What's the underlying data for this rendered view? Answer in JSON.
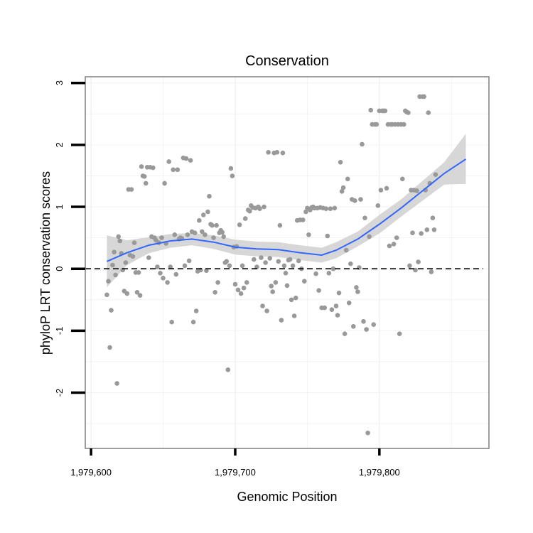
{
  "chart_data": {
    "type": "scatter",
    "title": "Conservation",
    "xlabel": "Genomic Position",
    "ylabel": "phyloP LRT conservation scores",
    "xlim": [
      1979596,
      1979876
    ],
    "ylim": [
      -2.9,
      3.1
    ],
    "x_ticks": [
      1979600,
      1979700,
      1979800
    ],
    "x_tick_labels": [
      "1,979,600",
      "1,979,700",
      "1,979,800"
    ],
    "y_ticks": [
      -2,
      -1,
      0,
      1,
      2,
      3
    ],
    "y_tick_labels": [
      "-2",
      "-1",
      "0",
      "1",
      "2",
      "3"
    ],
    "grid": true,
    "reference_line": {
      "y": 0,
      "style": "dashed",
      "color": "#000000"
    },
    "colors": {
      "points": "#999999",
      "smooth_line": "#3366ff",
      "confidence_band": "#d3d3d3",
      "panel_border": "#7f7f7f",
      "grid": "#f2f2f2"
    },
    "points": [
      [
        1979611,
        -0.42
      ],
      [
        1979612,
        -0.2
      ],
      [
        1979613,
        -1.27
      ],
      [
        1979614,
        -0.67
      ],
      [
        1979615,
        0.06
      ],
      [
        1979616,
        0.27
      ],
      [
        1979617,
        -0.1
      ],
      [
        1979618,
        -1.85
      ],
      [
        1979619,
        0.52
      ],
      [
        1979620,
        0.45
      ],
      [
        1979621,
        0.25
      ],
      [
        1979622,
        -0.02
      ],
      [
        1979623,
        -0.36
      ],
      [
        1979624,
        0.1
      ],
      [
        1979625,
        -0.4
      ],
      [
        1979626,
        1.28
      ],
      [
        1979627,
        0.22
      ],
      [
        1979628,
        1.28
      ],
      [
        1979629,
        0.2
      ],
      [
        1979630,
        0.42
      ],
      [
        1979631,
        -0.06
      ],
      [
        1979632,
        -0.38
      ],
      [
        1979633,
        -0.06
      ],
      [
        1979634,
        -0.43
      ],
      [
        1979635,
        1.65
      ],
      [
        1979636,
        1.5
      ],
      [
        1979637,
        1.49
      ],
      [
        1979638,
        1.38
      ],
      [
        1979639,
        1.64
      ],
      [
        1979640,
        0.18
      ],
      [
        1979641,
        1.64
      ],
      [
        1979642,
        0.52
      ],
      [
        1979643,
        1.63
      ],
      [
        1979644,
        0.5
      ],
      [
        1979645,
        0.46
      ],
      [
        1979646,
        0.03
      ],
      [
        1979647,
        0.42
      ],
      [
        1979648,
        -0.07
      ],
      [
        1979649,
        0.5
      ],
      [
        1979650,
        -0.15
      ],
      [
        1979651,
        1.38
      ],
      [
        1979652,
        0.41
      ],
      [
        1979653,
        -0.22
      ],
      [
        1979654,
        1.73
      ],
      [
        1979655,
        0.03
      ],
      [
        1979656,
        -0.86
      ],
      [
        1979657,
        1.6
      ],
      [
        1979658,
        0.55
      ],
      [
        1979659,
        -0.09
      ],
      [
        1979660,
        1.6
      ],
      [
        1979661,
        0.48
      ],
      [
        1979662,
        0.5
      ],
      [
        1979663,
        0.49
      ],
      [
        1979664,
        1.79
      ],
      [
        1979665,
        0.05
      ],
      [
        1979666,
        1.78
      ],
      [
        1979667,
        0.55
      ],
      [
        1979668,
        0.13
      ],
      [
        1979669,
        1.75
      ],
      [
        1979670,
        0.6
      ],
      [
        1979671,
        -0.86
      ],
      [
        1979672,
        0.58
      ],
      [
        1979673,
        -0.68
      ],
      [
        1979674,
        -0.04
      ],
      [
        1979675,
        0.78
      ],
      [
        1979676,
        -0.02
      ],
      [
        1979677,
        0.6
      ],
      [
        1979678,
        0.87
      ],
      [
        1979679,
        0.55
      ],
      [
        1979680,
        -0.03
      ],
      [
        1979681,
        0.92
      ],
      [
        1979682,
        1.17
      ],
      [
        1979683,
        0.72
      ],
      [
        1979684,
        0.7
      ],
      [
        1979685,
        0.5
      ],
      [
        1979686,
        -0.38
      ],
      [
        1979687,
        0.7
      ],
      [
        1979688,
        -0.22
      ],
      [
        1979689,
        0.58
      ],
      [
        1979690,
        0.62
      ],
      [
        1979691,
        0.59
      ],
      [
        1979692,
        0.52
      ],
      [
        1979693,
        0.1
      ],
      [
        1979694,
        0.12
      ],
      [
        1979695,
        -1.63
      ],
      [
        1979696,
        0.05
      ],
      [
        1979697,
        1.62
      ],
      [
        1979698,
        1.5
      ],
      [
        1979699,
        0.35
      ],
      [
        1979700,
        -0.25
      ],
      [
        1979701,
        0.36
      ],
      [
        1979702,
        -0.34
      ],
      [
        1979703,
        0.71
      ],
      [
        1979704,
        -0.4
      ],
      [
        1979705,
        0.05
      ],
      [
        1979706,
        -0.31
      ],
      [
        1979707,
        0.81
      ],
      [
        1979708,
        -0.22
      ],
      [
        1979709,
        0.95
      ],
      [
        1979710,
        0.93
      ],
      [
        1979711,
        1.02
      ],
      [
        1979712,
        0.99
      ],
      [
        1979713,
        0.15
      ],
      [
        1979714,
        0.98
      ],
      [
        1979715,
        0.03
      ],
      [
        1979716,
        1.0
      ],
      [
        1979717,
        0.97
      ],
      [
        1979718,
        0.18
      ],
      [
        1979719,
        -0.6
      ],
      [
        1979720,
        1.0
      ],
      [
        1979721,
        0.1
      ],
      [
        1979722,
        -0.68
      ],
      [
        1979723,
        1.88
      ],
      [
        1979724,
        0.17
      ],
      [
        1979725,
        -0.28
      ],
      [
        1979726,
        -0.37
      ],
      [
        1979727,
        1.87
      ],
      [
        1979728,
        -0.22
      ],
      [
        1979729,
        1.88
      ],
      [
        1979730,
        0.12
      ],
      [
        1979731,
        0.7
      ],
      [
        1979732,
        -0.83
      ],
      [
        1979733,
        1.87
      ],
      [
        1979734,
        0.05
      ],
      [
        1979735,
        -0.07
      ],
      [
        1979736,
        -0.27
      ],
      [
        1979737,
        0.14
      ],
      [
        1979738,
        0.15
      ],
      [
        1979739,
        -0.5
      ],
      [
        1979740,
        0.05
      ],
      [
        1979741,
        -0.76
      ],
      [
        1979742,
        -0.47
      ],
      [
        1979743,
        0.78
      ],
      [
        1979744,
        0.13
      ],
      [
        1979745,
        0.79
      ],
      [
        1979746,
        0.0
      ],
      [
        1979747,
        0.79
      ],
      [
        1979748,
        -0.2
      ],
      [
        1979749,
        0.92
      ],
      [
        1979750,
        0.98
      ],
      [
        1979751,
        0.55
      ],
      [
        1979752,
        0.95
      ],
      [
        1979753,
        0.99
      ],
      [
        1979754,
        1.0
      ],
      [
        1979755,
        0.98
      ],
      [
        1979756,
        -0.08
      ],
      [
        1979757,
        0.98
      ],
      [
        1979758,
        -0.35
      ],
      [
        1979759,
        0.99
      ],
      [
        1979760,
        -0.63
      ],
      [
        1979761,
        0.98
      ],
      [
        1979762,
        -0.63
      ],
      [
        1979763,
        0.97
      ],
      [
        1979764,
        0.53
      ],
      [
        1979765,
        -0.07
      ],
      [
        1979766,
        0.97
      ],
      [
        1979767,
        -0.66
      ],
      [
        1979768,
        0.0
      ],
      [
        1979769,
        0.98
      ],
      [
        1979770,
        -0.6
      ],
      [
        1979771,
        -0.75
      ],
      [
        1979772,
        -0.39
      ],
      [
        1979773,
        1.72
      ],
      [
        1979774,
        1.25
      ],
      [
        1979775,
        1.31
      ],
      [
        1979776,
        -1.05
      ],
      [
        1979777,
        0.3
      ],
      [
        1979778,
        1.45
      ],
      [
        1979779,
        -0.55
      ],
      [
        1979780,
        0.08
      ],
      [
        1979781,
        1.12
      ],
      [
        1979782,
        -0.93
      ],
      [
        1979783,
        1.1
      ],
      [
        1979784,
        -0.3
      ],
      [
        1979785,
        -0.37
      ],
      [
        1979786,
        0.02
      ],
      [
        1979787,
        1.12
      ],
      [
        1979788,
        2.01
      ],
      [
        1979789,
        -0.85
      ],
      [
        1979790,
        0.82
      ],
      [
        1979791,
        -0.98
      ],
      [
        1979792,
        -2.65
      ],
      [
        1979793,
        0.52
      ],
      [
        1979794,
        2.56
      ],
      [
        1979795,
        2.33
      ],
      [
        1979796,
        -0.9
      ],
      [
        1979797,
        2.33
      ],
      [
        1979798,
        2.33
      ],
      [
        1979799,
        1.02
      ],
      [
        1979800,
        2.55
      ],
      [
        1979801,
        1.27
      ],
      [
        1979802,
        2.55
      ],
      [
        1979803,
        2.55
      ],
      [
        1979804,
        2.55
      ],
      [
        1979805,
        1.3
      ],
      [
        1979806,
        2.33
      ],
      [
        1979807,
        0.37
      ],
      [
        1979808,
        2.33
      ],
      [
        1979809,
        2.33
      ],
      [
        1979810,
        0.4
      ],
      [
        1979811,
        2.33
      ],
      [
        1979812,
        0.5
      ],
      [
        1979813,
        2.33
      ],
      [
        1979814,
        -1.05
      ],
      [
        1979815,
        2.33
      ],
      [
        1979816,
        1.45
      ],
      [
        1979817,
        2.33
      ],
      [
        1979818,
        2.55
      ],
      [
        1979819,
        2.53
      ],
      [
        1979820,
        2.52
      ],
      [
        1979821,
        0.05
      ],
      [
        1979822,
        1.27
      ],
      [
        1979823,
        0.58
      ],
      [
        1979824,
        1.27
      ],
      [
        1979825,
        -0.02
      ],
      [
        1979826,
        1.26
      ],
      [
        1979827,
        0.11
      ],
      [
        1979828,
        2.78
      ],
      [
        1979829,
        0.57
      ],
      [
        1979830,
        2.78
      ],
      [
        1979831,
        2.78
      ],
      [
        1979832,
        1.27
      ],
      [
        1979833,
        0.63
      ],
      [
        1979834,
        2.52
      ],
      [
        1979835,
        1.38
      ],
      [
        1979836,
        -0.05
      ],
      [
        1979837,
        0.82
      ],
      [
        1979838,
        0.63
      ],
      [
        1979839,
        1.52
      ]
    ],
    "smooth": {
      "method": "loess",
      "x": [
        1979611,
        1979625,
        1979640,
        1979655,
        1979670,
        1979685,
        1979700,
        1979715,
        1979730,
        1979745,
        1979760,
        1979770,
        1979785,
        1979800,
        1979815,
        1979830,
        1979845,
        1979860
      ],
      "y": [
        0.12,
        0.26,
        0.38,
        0.45,
        0.48,
        0.43,
        0.35,
        0.32,
        0.31,
        0.26,
        0.22,
        0.3,
        0.48,
        0.72,
        0.98,
        1.26,
        1.54,
        1.77
      ],
      "lower": [
        -0.3,
        0.06,
        0.25,
        0.34,
        0.38,
        0.32,
        0.23,
        0.2,
        0.19,
        0.14,
        0.1,
        0.17,
        0.36,
        0.57,
        0.84,
        1.1,
        1.36,
        1.37
      ],
      "upper": [
        0.54,
        0.46,
        0.51,
        0.56,
        0.58,
        0.54,
        0.47,
        0.44,
        0.43,
        0.38,
        0.34,
        0.43,
        0.6,
        0.87,
        1.12,
        1.42,
        1.72,
        2.18
      ]
    }
  }
}
